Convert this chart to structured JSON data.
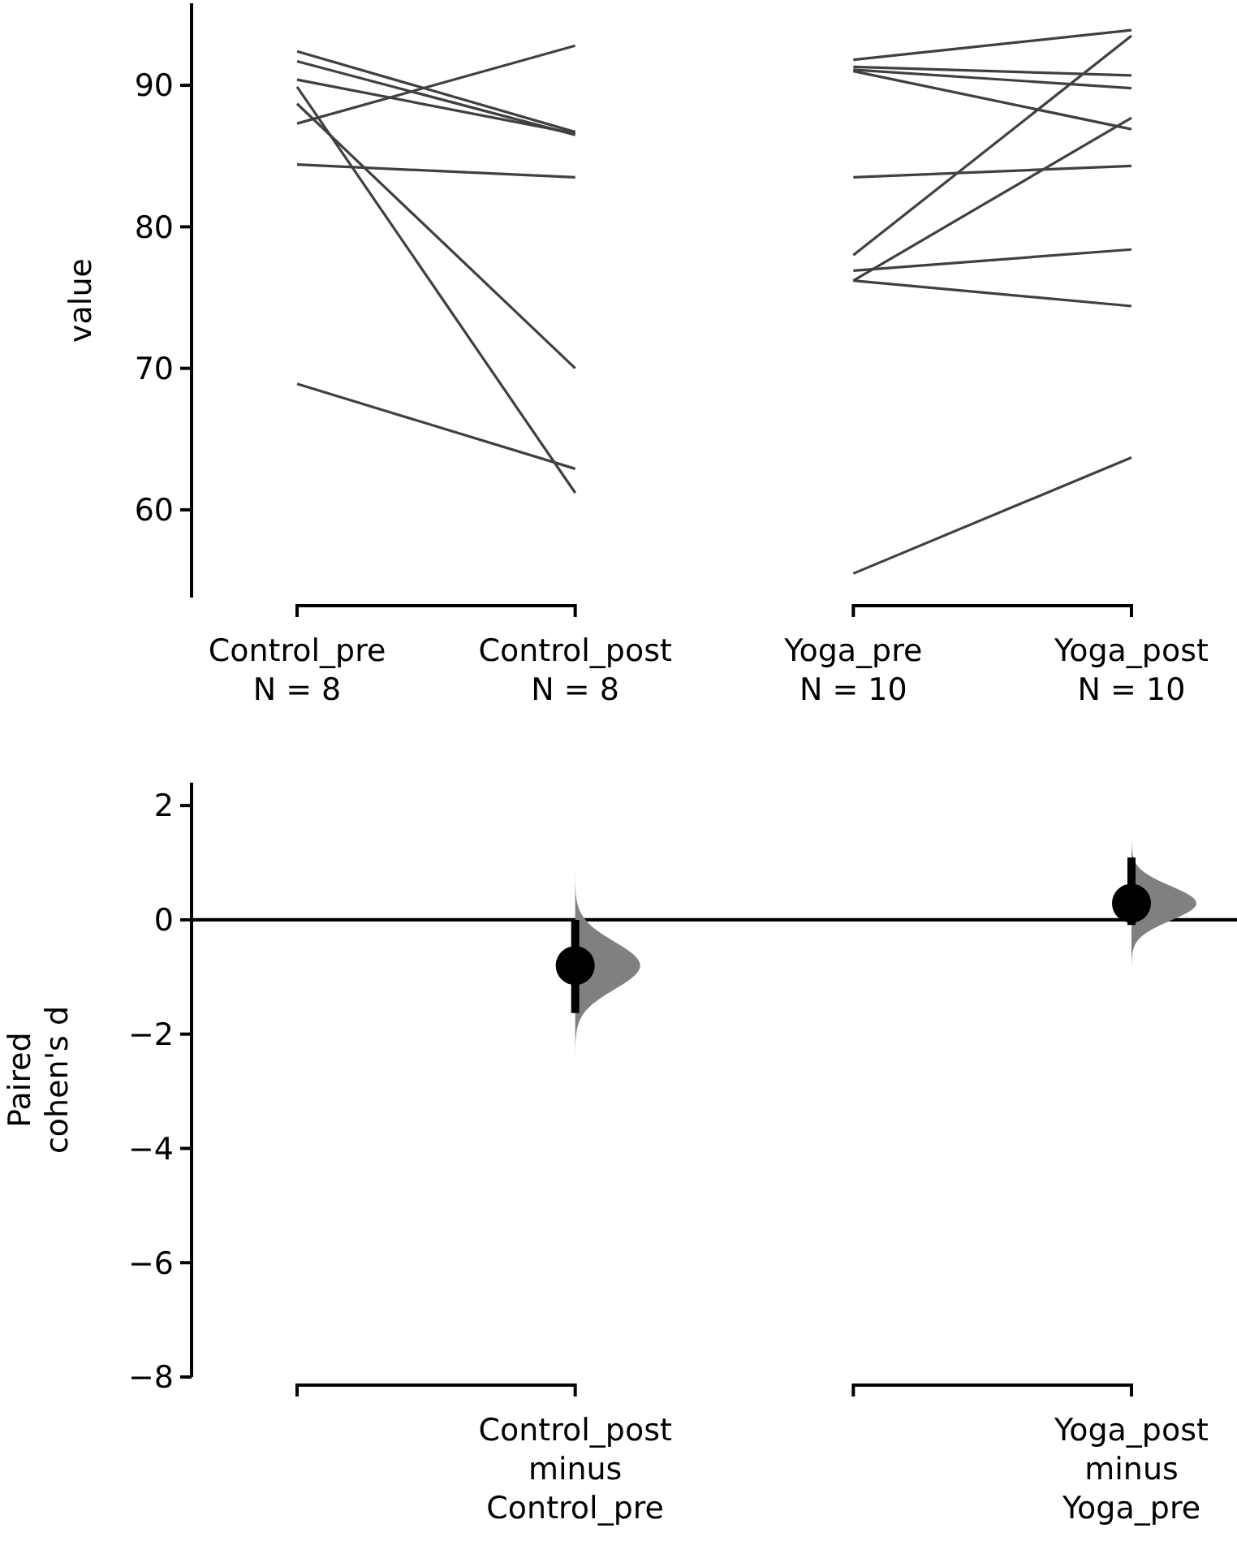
{
  "chart_data": [
    {
      "type": "line",
      "ylabel": "value",
      "categories": [
        "Control_pre\nN = 8",
        "Control_post\nN = 8",
        "Yoga_pre\nN = 10",
        "Yoga_post\nN = 10"
      ],
      "ylim": [
        53.8,
        95.8
      ],
      "yticks": [
        60,
        70,
        80,
        90
      ],
      "marker": "none",
      "line_style": "solid",
      "series": [
        {
          "color": "#404040",
          "values": [
            92.4,
            86.7,
            null,
            null
          ]
        },
        {
          "color": "#404040",
          "values": [
            91.7,
            86.5,
            null,
            null
          ]
        },
        {
          "color": "#404040",
          "values": [
            90.4,
            86.6,
            null,
            null
          ]
        },
        {
          "color": "#404040",
          "values": [
            89.9,
            61.2,
            null,
            null
          ]
        },
        {
          "color": "#404040",
          "values": [
            88.7,
            70.0,
            null,
            null
          ]
        },
        {
          "color": "#404040",
          "values": [
            87.3,
            92.8,
            null,
            null
          ]
        },
        {
          "color": "#404040",
          "values": [
            84.4,
            83.5,
            null,
            null
          ]
        },
        {
          "color": "#404040",
          "values": [
            68.9,
            62.9,
            null,
            null
          ]
        },
        {
          "color": "#404040",
          "values": [
            null,
            null,
            91.8,
            93.9
          ]
        },
        {
          "color": "#404040",
          "values": [
            null,
            null,
            91.3,
            90.7
          ]
        },
        {
          "color": "#404040",
          "values": [
            null,
            null,
            91.1,
            89.8
          ]
        },
        {
          "color": "#404040",
          "values": [
            null,
            null,
            91.0,
            86.9
          ]
        },
        {
          "color": "#404040",
          "values": [
            null,
            null,
            83.5,
            84.3
          ]
        },
        {
          "color": "#404040",
          "values": [
            null,
            null,
            78.0,
            93.5
          ]
        },
        {
          "color": "#404040",
          "values": [
            null,
            null,
            76.9,
            78.4
          ]
        },
        {
          "color": "#404040",
          "values": [
            null,
            null,
            76.2,
            87.7
          ]
        },
        {
          "color": "#404040",
          "values": [
            null,
            null,
            76.2,
            74.4
          ]
        },
        {
          "color": "#404040",
          "values": [
            null,
            null,
            55.5,
            63.7
          ]
        }
      ]
    },
    {
      "type": "scatter",
      "ylabel": "Paired\ncohen's d",
      "categories": [
        null,
        "Control_post\nminus\nControl_pre",
        null,
        "Yoga_post\nminus\nYoga_pre"
      ],
      "ylim": [
        -8,
        2.4
      ],
      "yticks": [
        {
          "value": -8,
          "label": "−8"
        },
        {
          "value": -6,
          "label": "−6"
        },
        {
          "value": -4,
          "label": "−4"
        },
        {
          "value": -2,
          "label": "−2"
        },
        0,
        2
      ],
      "marker": "circle",
      "color": "#000000",
      "values": [
        null,
        -0.8,
        null,
        0.29
      ],
      "errors": [
        null,
        [
          -1.63,
          0.0
        ],
        null,
        [
          -0.09,
          1.09
        ]
      ],
      "ref_lines": [
        {
          "axis": "y",
          "value": 0,
          "color": "#000000"
        }
      ]
    }
  ]
}
